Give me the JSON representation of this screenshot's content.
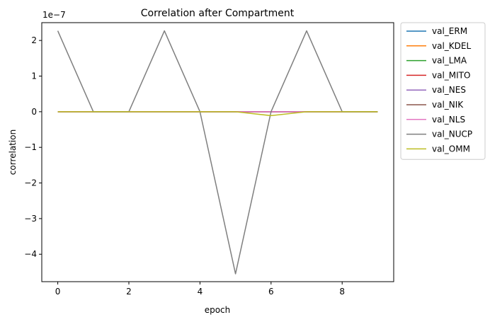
{
  "chart_data": {
    "type": "line",
    "title": "Correlation after Compartment",
    "xlabel": "epoch",
    "ylabel": "correlation",
    "scale_label": "1e−7",
    "x": [
      0,
      1,
      2,
      3,
      4,
      5,
      6,
      7,
      8,
      9
    ],
    "xlim": [
      -0.45,
      9.45
    ],
    "ylim": [
      -4.77,
      2.5
    ],
    "xticks": [
      0,
      2,
      4,
      6,
      8
    ],
    "yticks": [
      -4,
      -3,
      -2,
      -1,
      0,
      1,
      2
    ],
    "ytick_labels": [
      "−4",
      "−3",
      "−2",
      "−1",
      "0",
      "1",
      "2"
    ],
    "legend_placement": "outside-top-right",
    "grid": false,
    "series": [
      {
        "name": "val_ERM",
        "color": "#1f77b4",
        "values": [
          0,
          0,
          0,
          0,
          0,
          0,
          0,
          0,
          0,
          0
        ]
      },
      {
        "name": "val_KDEL",
        "color": "#ff7f0e",
        "values": [
          0,
          0,
          0,
          0,
          0,
          0,
          0,
          0,
          0,
          0
        ]
      },
      {
        "name": "val_LMA",
        "color": "#2ca02c",
        "values": [
          0,
          0,
          0,
          0,
          0,
          0,
          0,
          0,
          0,
          0
        ]
      },
      {
        "name": "val_MITO",
        "color": "#d62728",
        "values": [
          0,
          0,
          0,
          0,
          0,
          0,
          0,
          0,
          0,
          0
        ]
      },
      {
        "name": "val_NES",
        "color": "#9467bd",
        "values": [
          0,
          0,
          0,
          0,
          0,
          0,
          0,
          0,
          0,
          0
        ]
      },
      {
        "name": "val_NIK",
        "color": "#8c564b",
        "values": [
          0,
          0,
          0,
          0,
          0,
          0,
          0,
          0,
          0,
          0
        ]
      },
      {
        "name": "val_NLS",
        "color": "#e377c2",
        "values": [
          0,
          0,
          0,
          0,
          0,
          0,
          0,
          0,
          0,
          0
        ]
      },
      {
        "name": "val_NUCP",
        "color": "#7f7f7f",
        "values": [
          2.27,
          0,
          0,
          2.27,
          0,
          -4.55,
          0,
          2.27,
          0,
          0
        ]
      },
      {
        "name": "val_OMM",
        "color": "#bcbd22",
        "values": [
          0,
          0,
          0,
          0,
          0,
          0,
          -0.11,
          0,
          0,
          0
        ]
      }
    ]
  }
}
